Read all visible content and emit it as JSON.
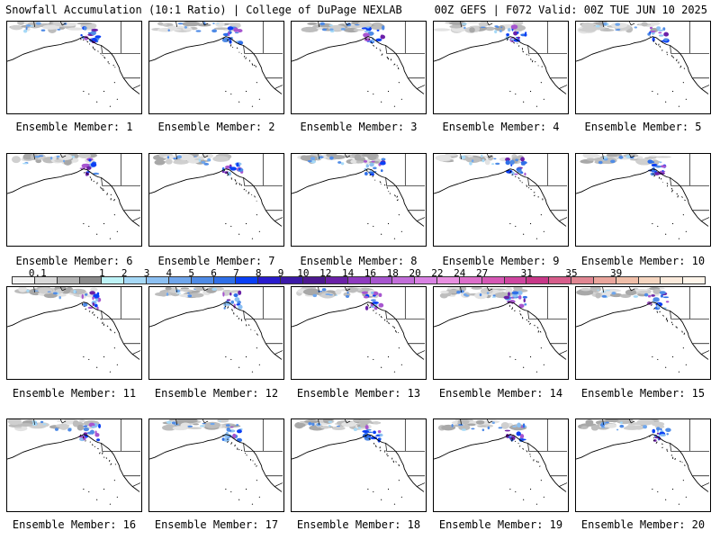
{
  "header": {
    "left_title": "Snowfall Accumulation (10:1 Ratio) | College of DuPage NEXLAB",
    "right_title": "00Z GEFS | F072 Valid: 00Z TUE JUN 10 2025"
  },
  "members": [
    {
      "label": "Ensemble Member: 1"
    },
    {
      "label": "Ensemble Member: 2"
    },
    {
      "label": "Ensemble Member: 3"
    },
    {
      "label": "Ensemble Member: 4"
    },
    {
      "label": "Ensemble Member: 5"
    },
    {
      "label": "Ensemble Member: 6"
    },
    {
      "label": "Ensemble Member: 7"
    },
    {
      "label": "Ensemble Member: 8"
    },
    {
      "label": "Ensemble Member: 9"
    },
    {
      "label": "Ensemble Member: 10"
    },
    {
      "label": "Ensemble Member: 11"
    },
    {
      "label": "Ensemble Member: 12"
    },
    {
      "label": "Ensemble Member: 13"
    },
    {
      "label": "Ensemble Member: 14"
    },
    {
      "label": "Ensemble Member: 15"
    },
    {
      "label": "Ensemble Member: 16"
    },
    {
      "label": "Ensemble Member: 17"
    },
    {
      "label": "Ensemble Member: 18"
    },
    {
      "label": "Ensemble Member: 19"
    },
    {
      "label": "Ensemble Member: 20"
    }
  ],
  "colorbar": {
    "labels": [
      "0.1",
      "1",
      "2",
      "3",
      "4",
      "5",
      "6",
      "7",
      "8",
      "9",
      "10",
      "12",
      "14",
      "16",
      "18",
      "20",
      "22",
      "24",
      "27",
      "31",
      "35",
      "39"
    ],
    "colors": [
      "#f2f2f2",
      "#d9d9d9",
      "#b3b3b3",
      "#8c8c8c",
      "#bdf3f7",
      "#a6d9f7",
      "#8cc0f2",
      "#6fa6ec",
      "#4f8be6",
      "#2f6fe8",
      "#0a3ff5",
      "#2a1ccd",
      "#3c1aa8",
      "#4d1990",
      "#6b21a8",
      "#8f3bc0",
      "#a755cf",
      "#c26ed9",
      "#d982e3",
      "#e88fe0",
      "#dd6fca",
      "#d658b5",
      "#cf46a0",
      "#c83888",
      "#d75d8b",
      "#e08692",
      "#eaa59c",
      "#f0bea8",
      "#f6d6c0",
      "#fbeadb",
      "#fff5ea"
    ]
  }
}
